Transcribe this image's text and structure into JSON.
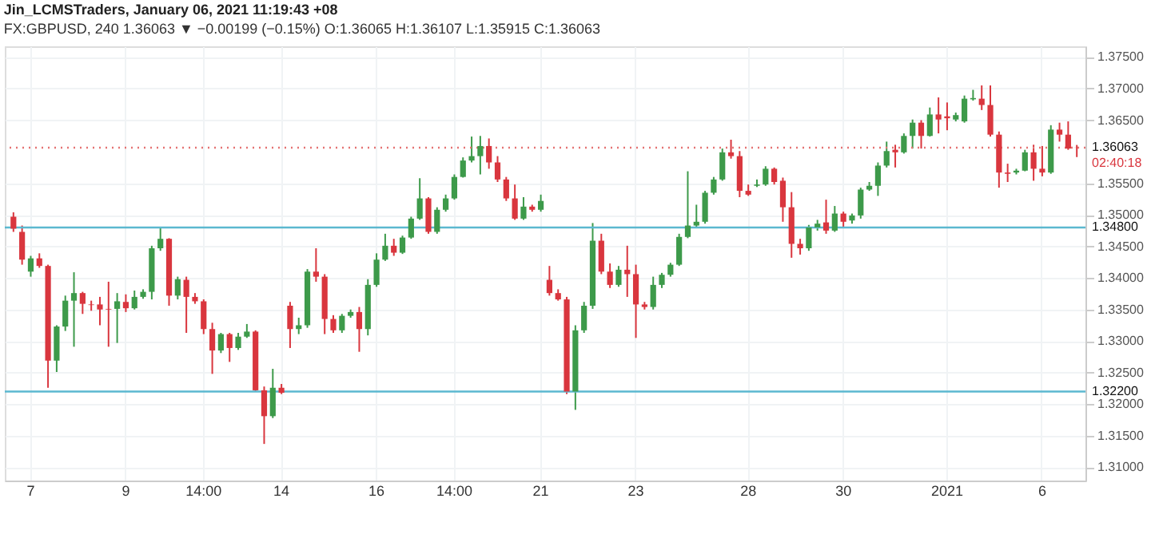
{
  "chart_data": {
    "type": "candlestick",
    "title": "Jin_LCMSTraders, January 06, 2021 11:19:43 +08",
    "subtitle": "FX:GBPUSD, 240 1.36063 ▼ −0.00199 (−0.15%) O:1.36065 H:1.36107 L:1.35915 C:1.36063",
    "annotations": [
      "02:40:18"
    ],
    "categories": [
      null,
      null,
      "7",
      null,
      null,
      null,
      null,
      null,
      null,
      null,
      null,
      null,
      null,
      "9",
      null,
      null,
      null,
      null,
      null,
      null,
      null,
      null,
      "14:00",
      null,
      null,
      null,
      null,
      null,
      null,
      null,
      null,
      "14",
      null,
      null,
      null,
      null,
      null,
      null,
      null,
      null,
      null,
      null,
      "16",
      null,
      null,
      null,
      null,
      null,
      null,
      null,
      null,
      "14:00",
      null,
      null,
      null,
      null,
      null,
      null,
      null,
      null,
      null,
      "21",
      null,
      null,
      null,
      null,
      null,
      null,
      null,
      null,
      null,
      null,
      "23",
      null,
      null,
      null,
      null,
      null,
      null,
      null,
      null,
      null,
      null,
      null,
      null,
      "28",
      null,
      null,
      null,
      null,
      null,
      null,
      null,
      null,
      null,
      null,
      "30",
      null,
      null,
      null,
      null,
      null,
      null,
      null,
      null,
      null,
      null,
      null,
      "2021",
      null,
      null,
      null,
      null,
      null,
      null,
      null,
      null,
      null,
      null,
      "6",
      null,
      null,
      null,
      null
    ],
    "ohlc": [
      [
        1.3497,
        1.3504,
        1.3473,
        1.3478
      ],
      [
        1.3473,
        1.3483,
        1.3421,
        1.3429
      ],
      [
        1.341,
        1.3435,
        1.3402,
        1.3431
      ],
      [
        1.3431,
        1.3439,
        1.3416,
        1.3419
      ],
      [
        1.3419,
        1.3421,
        1.3226,
        1.3269
      ],
      [
        1.3269,
        1.3325,
        1.3251,
        1.3323
      ],
      [
        1.3323,
        1.3372,
        1.3316,
        1.3364
      ],
      [
        1.3364,
        1.3409,
        1.3291,
        1.3376
      ],
      [
        1.3376,
        1.3378,
        1.3343,
        1.3359
      ],
      [
        1.3358,
        1.3364,
        1.3348,
        1.3357
      ],
      [
        1.3358,
        1.337,
        1.3325,
        1.335
      ],
      [
        1.3351,
        1.3394,
        1.3291,
        1.335
      ],
      [
        1.3351,
        1.3376,
        1.3297,
        1.3363
      ],
      [
        1.3362,
        1.3374,
        1.3346,
        1.3352
      ],
      [
        1.3352,
        1.338,
        1.335,
        1.337
      ],
      [
        1.337,
        1.3382,
        1.3367,
        1.3378
      ],
      [
        1.3378,
        1.3451,
        1.3366,
        1.3447
      ],
      [
        1.3447,
        1.3479,
        1.3443,
        1.3462
      ],
      [
        1.3462,
        1.3463,
        1.3356,
        1.3372
      ],
      [
        1.3372,
        1.3402,
        1.3366,
        1.3398
      ],
      [
        1.3397,
        1.3402,
        1.3313,
        1.337
      ],
      [
        1.337,
        1.3376,
        1.3359,
        1.3363
      ],
      [
        1.3363,
        1.3366,
        1.3311,
        1.3319
      ],
      [
        1.3319,
        1.3329,
        1.3248,
        1.3285
      ],
      [
        1.3285,
        1.3313,
        1.3281,
        1.3311
      ],
      [
        1.3311,
        1.3313,
        1.3267,
        1.3289
      ],
      [
        1.3289,
        1.3313,
        1.3286,
        1.3307
      ],
      [
        1.3307,
        1.3327,
        1.3305,
        1.3315
      ],
      [
        1.3315,
        1.3317,
        1.322,
        1.3222
      ],
      [
        1.3222,
        1.3228,
        1.3137,
        1.3181
      ],
      [
        1.3181,
        1.3256,
        1.3178,
        1.3226
      ],
      [
        1.3226,
        1.3232,
        1.3216,
        1.3218
      ],
      [
        1.3356,
        1.3362,
        1.3289,
        1.3319
      ],
      [
        1.3319,
        1.3337,
        1.3311,
        1.3325
      ],
      [
        1.3325,
        1.3414,
        1.3321,
        1.341
      ],
      [
        1.341,
        1.3447,
        1.3394,
        1.3402
      ],
      [
        1.3402,
        1.3406,
        1.3311,
        1.3335
      ],
      [
        1.3335,
        1.3341,
        1.3313,
        1.3317
      ],
      [
        1.3317,
        1.3343,
        1.3313,
        1.334
      ],
      [
        1.334,
        1.335,
        1.3337,
        1.3346
      ],
      [
        1.3346,
        1.3354,
        1.3283,
        1.3319
      ],
      [
        1.3319,
        1.3398,
        1.3309,
        1.3389
      ],
      [
        1.3389,
        1.3439,
        1.3386,
        1.3429
      ],
      [
        1.3429,
        1.347,
        1.3427,
        1.3451
      ],
      [
        1.3451,
        1.3462,
        1.3435,
        1.344
      ],
      [
        1.344,
        1.3467,
        1.3438,
        1.3464
      ],
      [
        1.3464,
        1.3497,
        1.3462,
        1.3494
      ],
      [
        1.3494,
        1.3558,
        1.3492,
        1.3526
      ],
      [
        1.3526,
        1.3528,
        1.347,
        1.3473
      ],
      [
        1.3473,
        1.3512,
        1.347,
        1.3508
      ],
      [
        1.3508,
        1.3532,
        1.3505,
        1.3526
      ],
      [
        1.3526,
        1.3564,
        1.3524,
        1.356
      ],
      [
        1.356,
        1.3591,
        1.3559,
        1.3586
      ],
      [
        1.3586,
        1.3624,
        1.3583,
        1.3593
      ],
      [
        1.3593,
        1.3625,
        1.3564,
        1.3609
      ],
      [
        1.3609,
        1.3621,
        1.3573,
        1.3583
      ],
      [
        1.3583,
        1.3593,
        1.3552,
        1.3556
      ],
      [
        1.3556,
        1.356,
        1.3522,
        1.3526
      ],
      [
        1.3526,
        1.3548,
        1.3492,
        1.3494
      ],
      [
        1.3494,
        1.3528,
        1.3492,
        1.3513
      ],
      [
        1.3513,
        1.3516,
        1.3505,
        1.3508
      ],
      [
        1.3508,
        1.3532,
        1.3505,
        1.3522
      ],
      [
        1.3397,
        1.3419,
        1.3372,
        1.3376
      ],
      [
        1.3376,
        1.3382,
        1.3364,
        1.3366
      ],
      [
        1.3366,
        1.337,
        1.3216,
        1.322
      ],
      [
        1.322,
        1.3325,
        1.3191,
        1.3317
      ],
      [
        1.3317,
        1.3362,
        1.3313,
        1.3356
      ],
      [
        1.3356,
        1.3487,
        1.3351,
        1.3459
      ],
      [
        1.3459,
        1.347,
        1.3406,
        1.341
      ],
      [
        1.341,
        1.3423,
        1.3384,
        1.3389
      ],
      [
        1.3389,
        1.3419,
        1.3386,
        1.3413
      ],
      [
        1.3413,
        1.3451,
        1.337,
        1.3406
      ],
      [
        1.3406,
        1.3421,
        1.3305,
        1.3358
      ],
      [
        1.3358,
        1.3362,
        1.335,
        1.3354
      ],
      [
        1.3354,
        1.3402,
        1.335,
        1.3389
      ],
      [
        1.3389,
        1.3408,
        1.3384,
        1.3405
      ],
      [
        1.3405,
        1.3424,
        1.3402,
        1.3421
      ],
      [
        1.3421,
        1.347,
        1.3419,
        1.3465
      ],
      [
        1.3465,
        1.3569,
        1.3463,
        1.3483
      ],
      [
        1.3483,
        1.3516,
        1.3481,
        1.3489
      ],
      [
        1.3489,
        1.3538,
        1.3486,
        1.3535
      ],
      [
        1.3535,
        1.356,
        1.3532,
        1.3556
      ],
      [
        1.3556,
        1.3605,
        1.3554,
        1.3599
      ],
      [
        1.3599,
        1.3619,
        1.3589,
        1.3593
      ],
      [
        1.3593,
        1.3601,
        1.3528,
        1.3538
      ],
      [
        1.3538,
        1.3548,
        1.353,
        1.3532
      ],
      [
        1.3546,
        1.3556,
        1.3544,
        1.3548
      ],
      [
        1.3548,
        1.3577,
        1.3546,
        1.3573
      ],
      [
        1.3573,
        1.3575,
        1.3548,
        1.3552
      ],
      [
        1.3554,
        1.3559,
        1.3489,
        1.3512
      ],
      [
        1.3512,
        1.3536,
        1.3432,
        1.3454
      ],
      [
        1.3454,
        1.3462,
        1.3437,
        1.3447
      ],
      [
        1.3447,
        1.3484,
        1.3443,
        1.348
      ],
      [
        1.348,
        1.3492,
        1.3475,
        1.3486
      ],
      [
        1.3488,
        1.3524,
        1.347,
        1.3475
      ],
      [
        1.3475,
        1.3514,
        1.3473,
        1.3502
      ],
      [
        1.3502,
        1.3505,
        1.3481,
        1.3489
      ],
      [
        1.3491,
        1.3502,
        1.3486,
        1.3499
      ],
      [
        1.3499,
        1.3543,
        1.3494,
        1.354
      ],
      [
        1.354,
        1.3552,
        1.3538,
        1.3546
      ],
      [
        1.3546,
        1.3583,
        1.353,
        1.3578
      ],
      [
        1.3578,
        1.3616,
        1.3575,
        1.3601
      ],
      [
        1.3603,
        1.3611,
        1.3575,
        1.3599
      ],
      [
        1.3599,
        1.3629,
        1.3597,
        1.3625
      ],
      [
        1.3625,
        1.3651,
        1.3605,
        1.3646
      ],
      [
        1.3646,
        1.365,
        1.3605,
        1.3625
      ],
      [
        1.3625,
        1.367,
        1.3624,
        1.3659
      ],
      [
        1.3659,
        1.3686,
        1.3629,
        1.3651
      ],
      [
        1.3656,
        1.3678,
        1.3634,
        1.3653
      ],
      [
        1.3651,
        1.3662,
        1.3648,
        1.3658
      ],
      [
        1.3648,
        1.3689,
        1.3646,
        1.3684
      ],
      [
        1.3683,
        1.3698,
        1.3681,
        1.3685
      ],
      [
        1.3684,
        1.3705,
        1.3666,
        1.3674
      ],
      [
        1.3674,
        1.3705,
        1.3624,
        1.3627
      ],
      [
        1.3627,
        1.3632,
        1.3543,
        1.3567
      ],
      [
        1.3567,
        1.3581,
        1.3552,
        1.3565
      ],
      [
        1.3567,
        1.3573,
        1.3564,
        1.357
      ],
      [
        1.357,
        1.3603,
        1.3569,
        1.3599
      ],
      [
        1.3599,
        1.3611,
        1.3554,
        1.3573
      ],
      [
        1.3573,
        1.3609,
        1.3561,
        1.3567
      ],
      [
        1.3567,
        1.3642,
        1.3565,
        1.3635
      ],
      [
        1.3635,
        1.3646,
        1.3616,
        1.3627
      ],
      [
        1.3627,
        1.3648,
        1.3603,
        1.3605
      ],
      [
        1.36065,
        1.36107,
        1.35915,
        1.36063
      ]
    ],
    "colors": [
      "#d9363e",
      "#d9363e",
      "#3d9a4a",
      "#d9363e",
      "#d9363e",
      "#3d9a4a",
      "#3d9a4a",
      "#3d9a4a",
      "#d9363e",
      "#d9363e",
      "#d9363e",
      "#d9363e",
      "#3d9a4a",
      "#d9363e",
      "#3d9a4a",
      "#3d9a4a",
      "#3d9a4a",
      "#3d9a4a",
      "#d9363e",
      "#3d9a4a",
      "#d9363e",
      "#d9363e",
      "#d9363e",
      "#d9363e",
      "#3d9a4a",
      "#d9363e",
      "#3d9a4a",
      "#3d9a4a",
      "#d9363e",
      "#d9363e",
      "#3d9a4a",
      "#d9363e",
      "#d9363e",
      "#3d9a4a",
      "#3d9a4a",
      "#d9363e",
      "#d9363e",
      "#d9363e",
      "#3d9a4a",
      "#3d9a4a",
      "#d9363e",
      "#3d9a4a",
      "#3d9a4a",
      "#3d9a4a",
      "#d9363e",
      "#3d9a4a",
      "#3d9a4a",
      "#3d9a4a",
      "#d9363e",
      "#3d9a4a",
      "#3d9a4a",
      "#3d9a4a",
      "#3d9a4a",
      "#3d9a4a",
      "#3d9a4a",
      "#d9363e",
      "#d9363e",
      "#d9363e",
      "#d9363e",
      "#3d9a4a",
      "#d9363e",
      "#3d9a4a",
      "#d9363e",
      "#d9363e",
      "#d9363e",
      "#3d9a4a",
      "#3d9a4a",
      "#3d9a4a",
      "#d9363e",
      "#d9363e",
      "#3d9a4a",
      "#d9363e",
      "#d9363e",
      "#d9363e",
      "#3d9a4a",
      "#3d9a4a",
      "#3d9a4a",
      "#3d9a4a",
      "#3d9a4a",
      "#3d9a4a",
      "#3d9a4a",
      "#3d9a4a",
      "#3d9a4a",
      "#d9363e",
      "#d9363e",
      "#d9363e",
      "#3d9a4a",
      "#3d9a4a",
      "#d9363e",
      "#d9363e",
      "#d9363e",
      "#d9363e",
      "#3d9a4a",
      "#3d9a4a",
      "#d9363e",
      "#3d9a4a",
      "#d9363e",
      "#3d9a4a",
      "#3d9a4a",
      "#3d9a4a",
      "#3d9a4a",
      "#3d9a4a",
      "#d9363e",
      "#3d9a4a",
      "#3d9a4a",
      "#d9363e",
      "#3d9a4a",
      "#d9363e",
      "#d9363e",
      "#3d9a4a",
      "#3d9a4a",
      "#3d9a4a",
      "#d9363e",
      "#d9363e",
      "#d9363e",
      "#d9363e",
      "#3d9a4a",
      "#3d9a4a",
      "#d9363e",
      "#d9363e",
      "#3d9a4a",
      "#d9363e",
      "#d9363e",
      "#d9363e"
    ],
    "ylim": [
      1.3079,
      1.3767
    ],
    "yticks": [
      {
        "value": 1.31,
        "label": "1.31000"
      },
      {
        "value": 1.315,
        "label": "1.31500"
      },
      {
        "value": 1.32,
        "label": "1.32000"
      },
      {
        "value": 1.325,
        "label": "1.32500"
      },
      {
        "value": 1.33,
        "label": "1.33000"
      },
      {
        "value": 1.335,
        "label": "1.33500"
      },
      {
        "value": 1.34,
        "label": "1.34000"
      },
      {
        "value": 1.345,
        "label": "1.34500"
      },
      {
        "value": 1.35,
        "label": "1.35000"
      },
      {
        "value": 1.355,
        "label": "1.35500"
      },
      {
        "value": 1.365,
        "label": "1.36500"
      },
      {
        "value": 1.37,
        "label": "1.37000"
      },
      {
        "value": 1.375,
        "label": "1.37500"
      }
    ],
    "ref_lines": [
      {
        "axis": "y",
        "value": 1.348,
        "label": "1.34800",
        "color": "#5bb8d0"
      },
      {
        "axis": "y",
        "value": 1.322,
        "label": "1.32200",
        "color": "#5bb8d0"
      },
      {
        "axis": "y",
        "value": 1.36063,
        "label": "1.36063",
        "color": "#e57373",
        "line_style": "dotted"
      }
    ],
    "grid": true
  }
}
